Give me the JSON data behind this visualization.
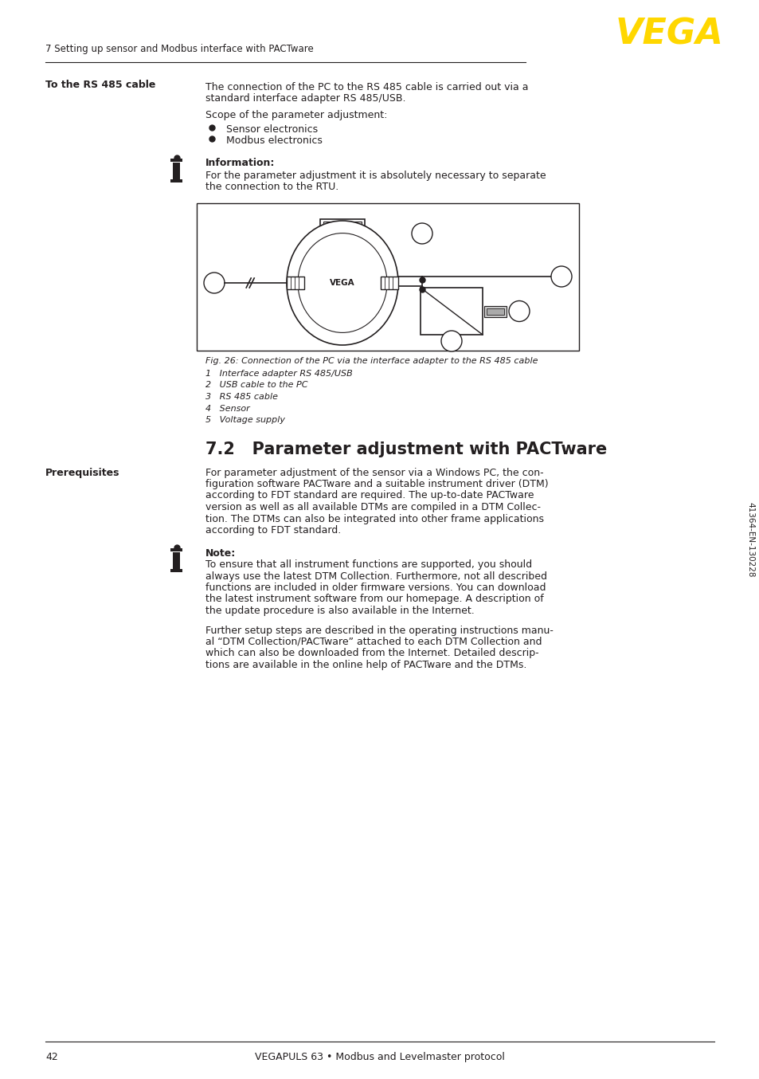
{
  "page_header_text": "7 Setting up sensor and Modbus interface with PACTware",
  "vega_logo_text": "VEGA",
  "vega_logo_color": "#FFD700",
  "section_label": "To the RS 485 cable",
  "para1_line1": "The connection of the PC to the RS 485 cable is carried out via a",
  "para1_line2": "standard interface adapter RS 485/USB.",
  "para2": "Scope of the parameter adjustment:",
  "bullet1": "Sensor electronics",
  "bullet2": "Modbus electronics",
  "info_label": "Information:",
  "info_line1": "For the parameter adjustment it is absolutely necessary to separate",
  "info_line2": "the connection to the RTU.",
  "fig_caption": "Fig. 26: Connection of the PC via the interface adapter to the RS 485 cable",
  "fig_items": [
    "1   Interface adapter RS 485/USB",
    "2   USB cable to the PC",
    "3   RS 485 cable",
    "4   Sensor",
    "5   Voltage supply"
  ],
  "section72_title": "7.2   Parameter adjustment with PACTware",
  "prereq_label": "Prerequisites",
  "prereq_line1": "For parameter adjustment of the sensor via a Windows PC, the con-",
  "prereq_line2": "figuration software PACTware and a suitable instrument driver (DTM)",
  "prereq_line3": "according to FDT standard are required. The up-to-date PACTware",
  "prereq_line4": "version as well as all available DTMs are compiled in a DTM Collec-",
  "prereq_line5": "tion. The DTMs can also be integrated into other frame applications",
  "prereq_line6": "according to FDT standard.",
  "note_label": "Note:",
  "note_line1": "To ensure that all instrument functions are supported, you should",
  "note_line2": "always use the latest DTM Collection. Furthermore, not all described",
  "note_line3": "functions are included in older firmware versions. You can download",
  "note_line4": "the latest instrument software from our homepage. A description of",
  "note_line5": "the update procedure is also available in the Internet.",
  "further_line1": "Further setup steps are described in the operating instructions manu-",
  "further_line2": "al “DTM Collection/PACTware” attached to each DTM Collection and",
  "further_line3": "which can also be downloaded from the Internet. Detailed descrip-",
  "further_line4": "tions are available in the online help of PACTware and the DTMs.",
  "footer_page": "42",
  "footer_product": "VEGAPULS 63 • Modbus and Levelmaster protocol",
  "side_text": "41364-EN-130228",
  "text_color": "#231f20",
  "bg_color": "#ffffff",
  "line_color": "#231f20"
}
